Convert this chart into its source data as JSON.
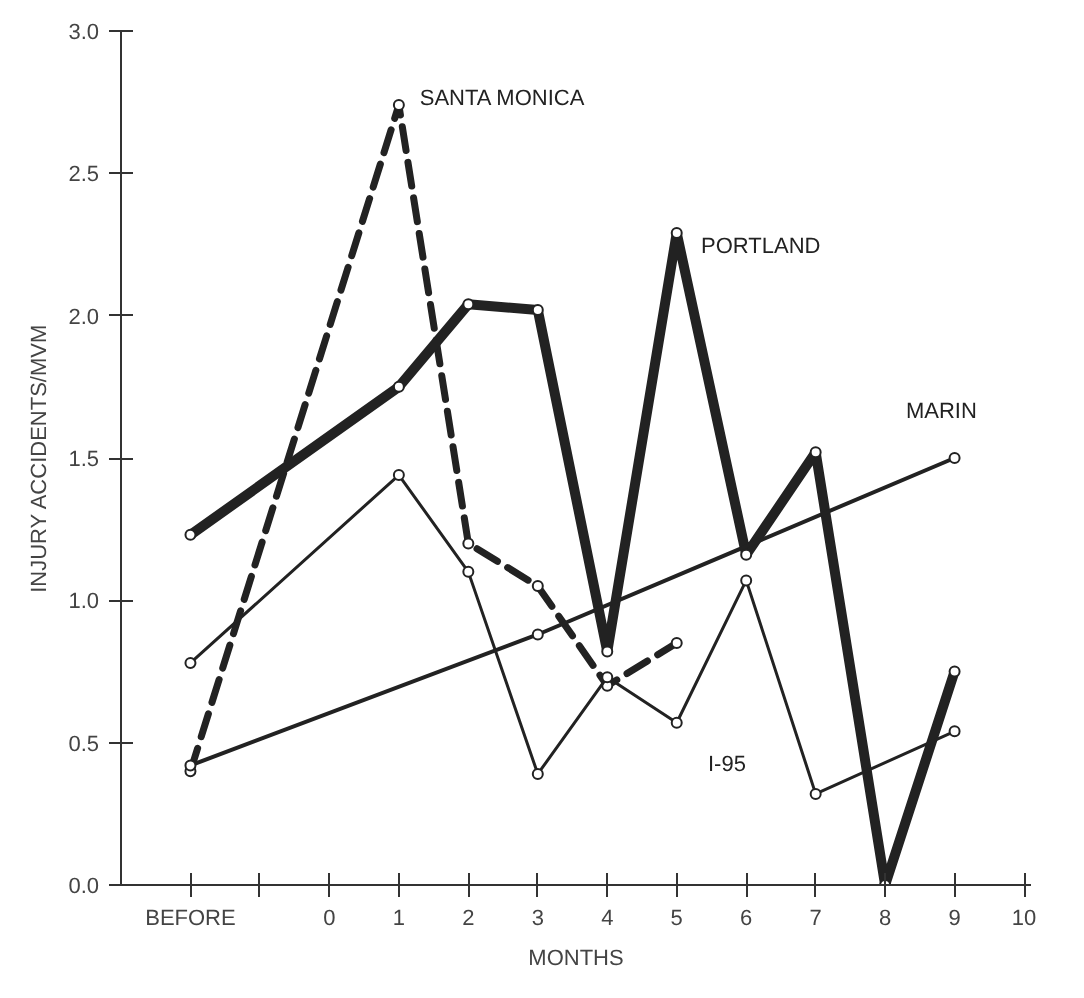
{
  "chart_data": {
    "type": "line",
    "xlabel": "MONTHS",
    "ylabel": "INJURY ACCIDENTS/MVM",
    "xlim": [
      -3,
      10.1
    ],
    "ylim": [
      0,
      3
    ],
    "xticks": [
      {
        "value": -2,
        "label": "BEFORE"
      },
      {
        "value": -1,
        "label": null
      },
      0,
      1,
      2,
      3,
      4,
      5,
      6,
      7,
      8,
      9,
      10
    ],
    "yticks": [
      {
        "value": 0,
        "label": "0.0"
      },
      {
        "value": 0.5,
        "label": "0.5"
      },
      {
        "value": 1,
        "label": "1.0"
      },
      {
        "value": 1.5,
        "label": "1.5"
      },
      {
        "value": 2,
        "label": "2.0"
      },
      {
        "value": 2.5,
        "label": "2.5"
      },
      {
        "value": 3,
        "label": "3.0"
      }
    ],
    "grid": false,
    "legend": false,
    "marker": "circle",
    "series": [
      {
        "name": "SANTA MONICA",
        "color": "#222222",
        "line_style": "dashed",
        "x": [
          -2,
          1,
          2,
          3,
          4,
          5
        ],
        "values": [
          0.4,
          2.74,
          1.2,
          1.05,
          0.7,
          0.85
        ]
      },
      {
        "name": "PORTLAND",
        "color": "#222222",
        "line_style": "solid",
        "x": [
          -2,
          1,
          2,
          3,
          4,
          5,
          6,
          7,
          8,
          9
        ],
        "values": [
          1.23,
          1.75,
          2.04,
          2.02,
          0.82,
          2.29,
          1.16,
          1.52,
          0.0,
          0.75
        ]
      },
      {
        "name": "MARIN",
        "color": "#222222",
        "line_style": "solid",
        "x": [
          -2,
          3,
          9
        ],
        "values": [
          0.42,
          0.88,
          1.5
        ]
      },
      {
        "name": "I-95",
        "color": "#222222",
        "line_style": "solid",
        "x": [
          -2,
          1,
          2,
          3,
          4,
          5,
          6,
          7,
          9
        ],
        "values": [
          0.78,
          1.44,
          1.1,
          0.39,
          0.73,
          0.57,
          1.07,
          0.32,
          0.54
        ]
      }
    ]
  }
}
